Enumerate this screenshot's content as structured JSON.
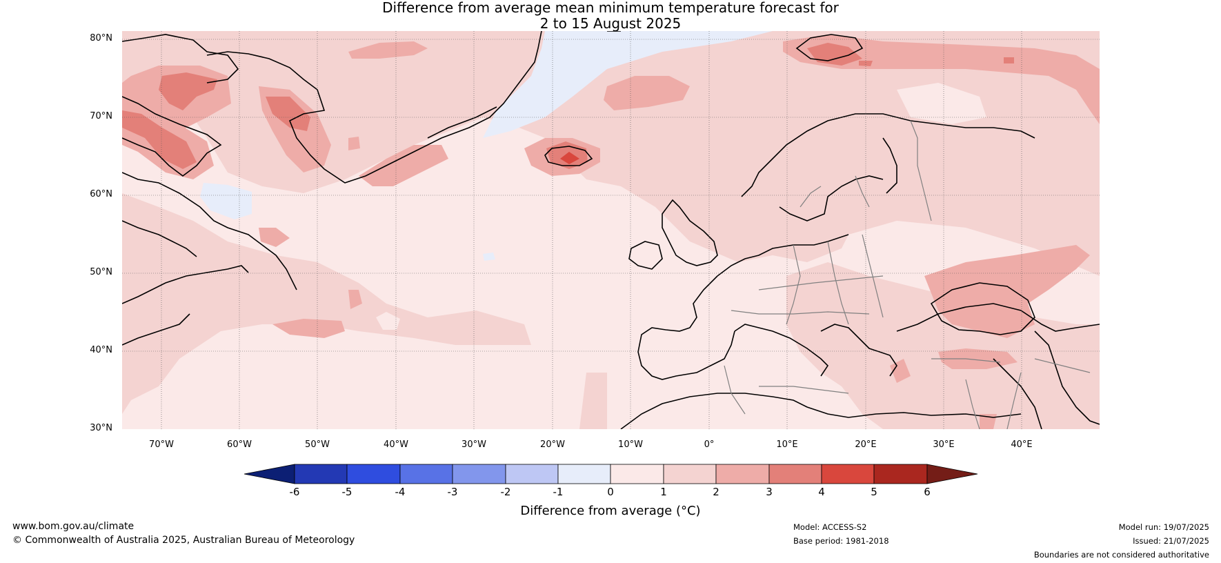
{
  "title": {
    "line1": "Difference from average mean minimum temperature forecast for",
    "line2": "2 to 15 August 2025"
  },
  "map": {
    "lat_labels": [
      "80°N",
      "70°N",
      "60°N",
      "50°N",
      "40°N",
      "30°N"
    ],
    "lon_labels": [
      "70°W",
      "60°W",
      "50°W",
      "40°W",
      "30°W",
      "20°W",
      "10°W",
      "0°",
      "10°E",
      "20°E",
      "30°E",
      "40°E"
    ],
    "colors": {
      "ocean_base": "#fbe9e8",
      "anom_0_1": "#fbe9e8",
      "anom_1_2": "#f4d3d1",
      "anom_2_3": "#eeaca8",
      "anom_3_4": "#e38079",
      "anom_4_5": "#d9473d",
      "cool_0_1": "#e7edfa",
      "coast": "#000000",
      "borders": "#808080"
    }
  },
  "colorbar": {
    "ticks": [
      "-6",
      "-5",
      "-4",
      "-3",
      "-2",
      "-1",
      "0",
      "1",
      "2",
      "3",
      "4",
      "5",
      "6"
    ],
    "colors": [
      "#0c1f74",
      "#2339b4",
      "#2f4ddf",
      "#5872e6",
      "#8296ec",
      "#bec7f4",
      "#e7edfa",
      "#fbe9e8",
      "#f4d3d1",
      "#eeaca8",
      "#e38079",
      "#d9473d",
      "#aa271f",
      "#741d17"
    ],
    "label": "Difference from average (°C)"
  },
  "footer": {
    "website": "www.bom.gov.au/climate",
    "copyright": "© Commonwealth of Australia 2025, Australian Bureau of Meteorology",
    "model": "Model: ACCESS-S2",
    "base_period": "Base period: 1981-2018",
    "model_run": "Model run: 19/07/2025",
    "issued": "Issued: 21/07/2025",
    "disclaimer": "Boundaries are not considered authoritative"
  }
}
